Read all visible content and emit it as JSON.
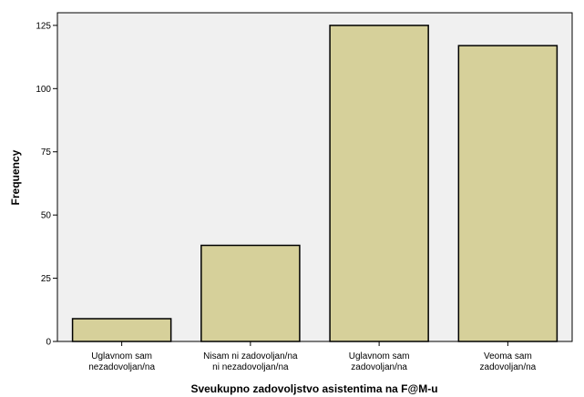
{
  "chart_data": {
    "type": "bar",
    "title": "",
    "xlabel": "Sveukupno zadovoljstvo asistentima na F@M-u",
    "ylabel": "Frequency",
    "categories": [
      [
        "Uglavnom sam",
        "nezadovoljan/na"
      ],
      [
        "Nisam ni zadovoljan/na",
        "ni nezadovoljan/na"
      ],
      [
        "Uglavnom sam",
        "zadovoljan/na"
      ],
      [
        "Veoma sam",
        "zadovoljan/na"
      ]
    ],
    "values": [
      9,
      38,
      125,
      117
    ],
    "ylim": [
      0,
      130
    ],
    "yticks": [
      0,
      25,
      50,
      75,
      100,
      125
    ],
    "grid": false,
    "colors": {
      "plot_background": "#f0f0f0",
      "bar_fill": "#d6d09a",
      "bar_stroke": "#000000"
    }
  }
}
